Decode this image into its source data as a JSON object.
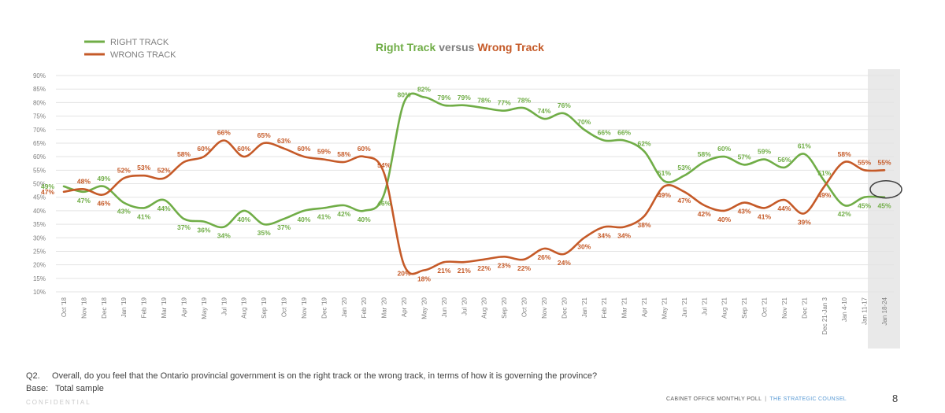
{
  "chart_data": {
    "type": "line",
    "title_parts": [
      "Right Track",
      "versus",
      "Wrong Track"
    ],
    "categories": [
      "Oct '18",
      "Nov '18",
      "Dec '18",
      "Jan '19",
      "Feb '19",
      "Mar '19",
      "Apr '19",
      "May '19",
      "Jul '19",
      "Aug '19",
      "Sep '19",
      "Oct '19",
      "Nov '19",
      "Dec '19",
      "Jan '20",
      "Feb '20",
      "Mar '20",
      "Apr '20",
      "May '20",
      "Jun '20",
      "Jul '20",
      "Aug '20",
      "Sep '20",
      "Oct '20",
      "Nov '20",
      "Dec '20",
      "Jan '21",
      "Feb '21",
      "Mar '21",
      "Apr '21",
      "May '21",
      "Jun '21",
      "Jul '21",
      "Aug '21",
      "Sep '21",
      "Oct '21",
      "Nov '21",
      "Dec '21",
      "Dec 21-Jan 3",
      "Jan 4-10",
      "Jan 11-17",
      "Jan 18-24"
    ],
    "series": [
      {
        "name": "RIGHT TRACK",
        "color": "#70ad47",
        "values": [
          49,
          47,
          49,
          43,
          41,
          44,
          37,
          36,
          34,
          40,
          35,
          37,
          40,
          41,
          42,
          40,
          46,
          80,
          82,
          79,
          79,
          78,
          77,
          78,
          74,
          76,
          70,
          66,
          66,
          62,
          51,
          53,
          58,
          60,
          57,
          59,
          56,
          61,
          51,
          42,
          45,
          45
        ]
      },
      {
        "name": "WRONG TRACK",
        "color": "#c55a28",
        "values": [
          47,
          48,
          46,
          52,
          53,
          52,
          58,
          60,
          66,
          60,
          65,
          63,
          60,
          59,
          58,
          60,
          54,
          20,
          18,
          21,
          21,
          22,
          23,
          22,
          26,
          24,
          30,
          34,
          34,
          38,
          49,
          47,
          42,
          40,
          43,
          41,
          44,
          39,
          49,
          58,
          55,
          55
        ]
      }
    ],
    "label_suffix": "%",
    "y_tick_labels": [
      "10%",
      "15%",
      "20%",
      "25%",
      "30%",
      "35%",
      "40%",
      "45%",
      "50%",
      "55%",
      "60%",
      "65%",
      "70%",
      "75%",
      "80%",
      "85%",
      "90%"
    ],
    "ylim": [
      10,
      90
    ],
    "highlighted_category": "Jan 18-24",
    "circled_value": "45%",
    "legend_position": "top-left"
  },
  "footnote": {
    "question_number": "Q2.",
    "question_text": "Overall, do you feel that the Ontario provincial government is on the right track or the wrong track, in terms of how it is governing the province?",
    "base_label": "Base:",
    "base_text": "Total sample",
    "confidential": "CONFIDENTIAL"
  },
  "footer": {
    "poll_name": "CABINET OFFICE MONTHLY POLL",
    "separator": "|",
    "organization": "THE STRATEGIC COUNSEL",
    "page_number": "8"
  }
}
